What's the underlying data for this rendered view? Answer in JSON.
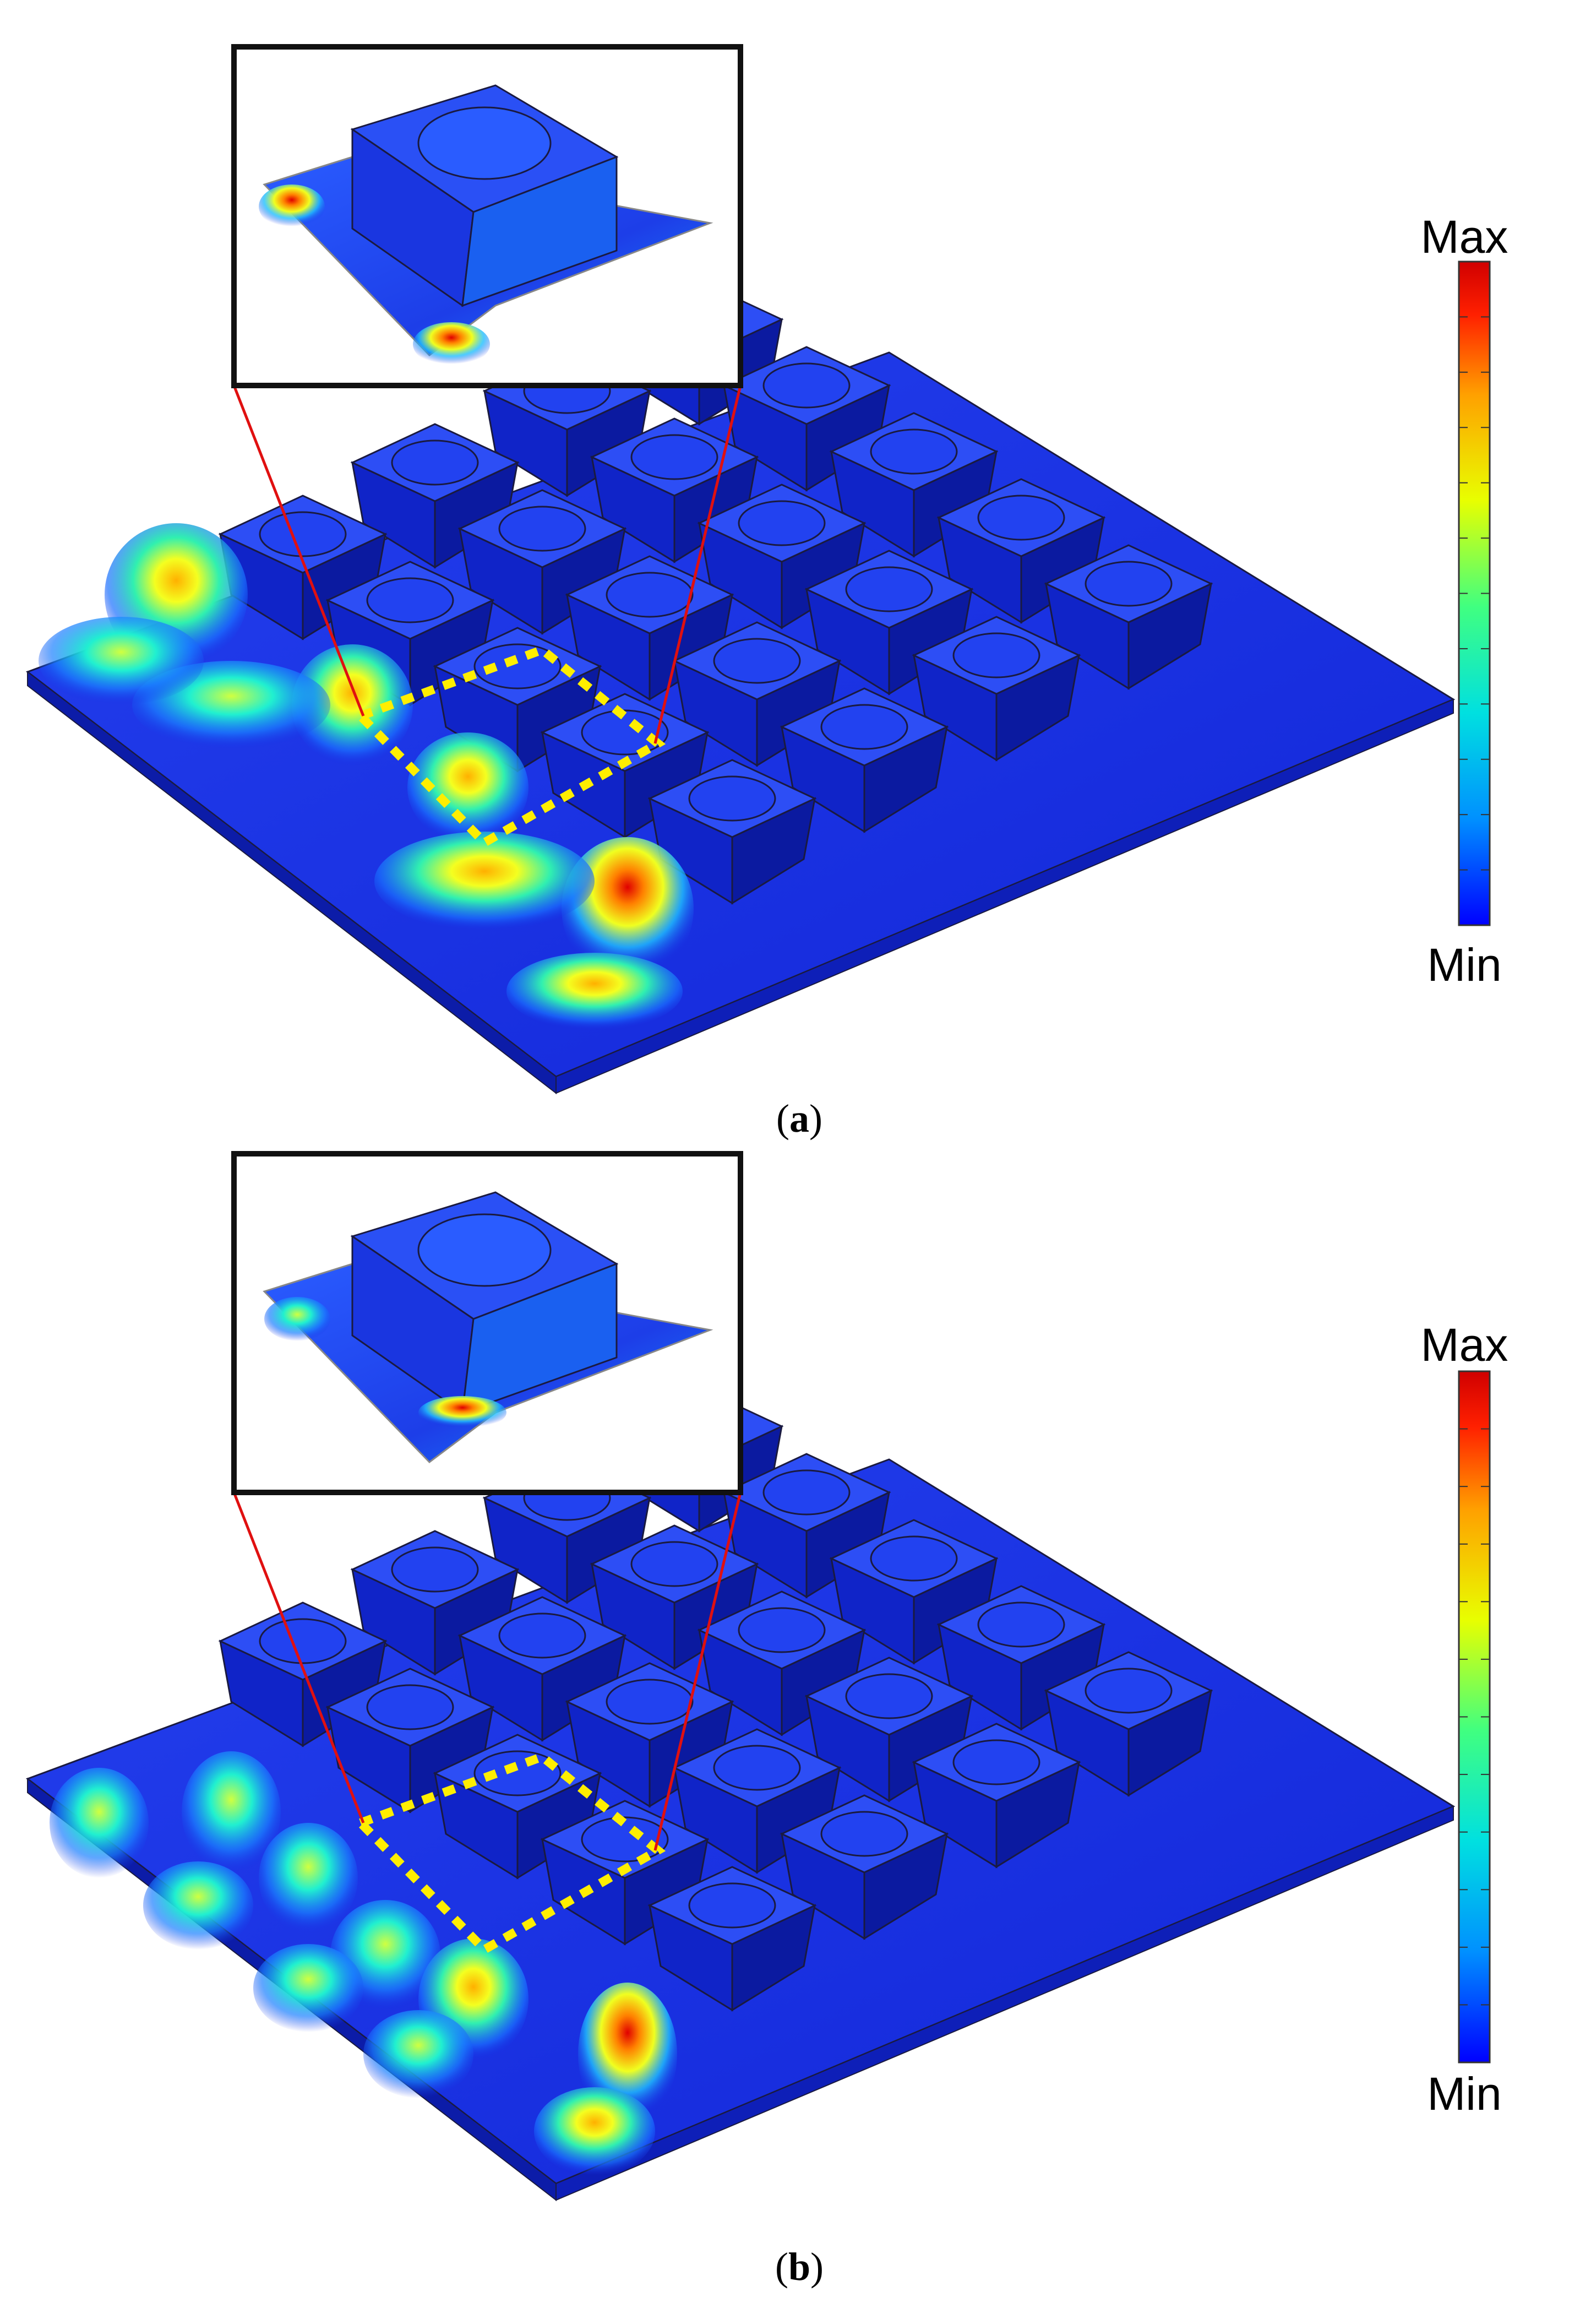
{
  "panels": [
    {
      "id": "a",
      "caption_open": "(",
      "caption_letter": "a",
      "caption_close": ")",
      "colorbar": {
        "max_label": "Max",
        "min_label": "Min"
      }
    },
    {
      "id": "b",
      "caption_open": "(",
      "caption_letter": "b",
      "caption_close": ")",
      "colorbar": {
        "max_label": "Max",
        "min_label": "Min"
      }
    }
  ],
  "colors": {
    "surface_blue": "#1530e6",
    "block_top": "#2d4ef5",
    "block_side": "#1024c8",
    "outline": "#1a1a40",
    "highlight_dashes": "#ffee00",
    "leader_lines": "#e01010",
    "inset_frame": "#111111"
  },
  "colormap": [
    "#0000ff",
    "#0090ff",
    "#00e0e0",
    "#40ff80",
    "#e8ff00",
    "#ffa000",
    "#ff2000",
    "#d00000"
  ]
}
